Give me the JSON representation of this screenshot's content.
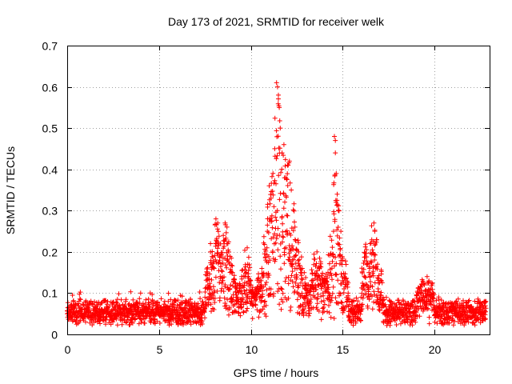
{
  "chart_data": {
    "type": "scatter",
    "title": "Day 173 of 2021, SRMTID for receiver welk",
    "xlabel": "GPS time / hours",
    "ylabel": "SRMTID / TECUs",
    "xlim": [
      0,
      23
    ],
    "ylim": [
      0,
      0.7
    ],
    "xticks": [
      0,
      5,
      10,
      15,
      20
    ],
    "yticks": [
      0,
      0.1,
      0.2,
      0.3,
      0.4,
      0.5,
      0.6,
      0.7
    ],
    "ytick_labels": [
      "0",
      "0.1",
      "0.2",
      "0.3",
      "0.4",
      "0.5",
      "0.6",
      "0.7"
    ],
    "xtick_labels": [
      "0",
      "5",
      "10",
      "15",
      "20"
    ],
    "grid": true,
    "marker": "+",
    "series": [
      {
        "name": "SRMTID",
        "color": "#ff0000",
        "x_range_hours": [
          0,
          22.8
        ],
        "baseline_level_tecu": 0.05,
        "points": [
          {
            "x": 0.0,
            "y": 0.05
          },
          {
            "x": 0.2,
            "y": 0.07
          },
          {
            "x": 0.5,
            "y": 0.04
          },
          {
            "x": 0.8,
            "y": 0.06
          },
          {
            "x": 1.0,
            "y": 0.03
          },
          {
            "x": 1.5,
            "y": 0.05
          },
          {
            "x": 2.0,
            "y": 0.04
          },
          {
            "x": 2.5,
            "y": 0.06
          },
          {
            "x": 3.0,
            "y": 0.05
          },
          {
            "x": 3.5,
            "y": 0.07
          },
          {
            "x": 4.0,
            "y": 0.1
          },
          {
            "x": 4.5,
            "y": 0.05
          },
          {
            "x": 5.0,
            "y": 0.06
          },
          {
            "x": 5.5,
            "y": 0.08
          },
          {
            "x": 6.0,
            "y": 0.07
          },
          {
            "x": 6.5,
            "y": 0.05
          },
          {
            "x": 7.0,
            "y": 0.06
          },
          {
            "x": 7.5,
            "y": 0.09
          },
          {
            "x": 7.8,
            "y": 0.2
          },
          {
            "x": 7.8,
            "y": 0.22
          },
          {
            "x": 8.0,
            "y": 0.16
          },
          {
            "x": 8.1,
            "y": 0.28
          },
          {
            "x": 8.2,
            "y": 0.27
          },
          {
            "x": 8.3,
            "y": 0.18
          },
          {
            "x": 8.5,
            "y": 0.24
          },
          {
            "x": 8.6,
            "y": 0.27
          },
          {
            "x": 8.7,
            "y": 0.26
          },
          {
            "x": 8.8,
            "y": 0.2
          },
          {
            "x": 9.0,
            "y": 0.15
          },
          {
            "x": 9.2,
            "y": 0.08
          },
          {
            "x": 9.5,
            "y": 0.14
          },
          {
            "x": 9.8,
            "y": 0.21
          },
          {
            "x": 10.0,
            "y": 0.12
          },
          {
            "x": 10.3,
            "y": 0.1
          },
          {
            "x": 10.6,
            "y": 0.16
          },
          {
            "x": 10.9,
            "y": 0.25
          },
          {
            "x": 11.0,
            "y": 0.36
          },
          {
            "x": 11.1,
            "y": 0.33
          },
          {
            "x": 11.3,
            "y": 0.45
          },
          {
            "x": 11.4,
            "y": 0.61
          },
          {
            "x": 11.45,
            "y": 0.6
          },
          {
            "x": 11.5,
            "y": 0.58
          },
          {
            "x": 11.55,
            "y": 0.55
          },
          {
            "x": 11.6,
            "y": 0.5
          },
          {
            "x": 11.7,
            "y": 0.44
          },
          {
            "x": 11.8,
            "y": 0.46
          },
          {
            "x": 11.9,
            "y": 0.38
          },
          {
            "x": 12.0,
            "y": 0.41
          },
          {
            "x": 12.1,
            "y": 0.42
          },
          {
            "x": 12.2,
            "y": 0.35
          },
          {
            "x": 12.4,
            "y": 0.26
          },
          {
            "x": 12.6,
            "y": 0.2
          },
          {
            "x": 12.8,
            "y": 0.16
          },
          {
            "x": 13.0,
            "y": 0.11
          },
          {
            "x": 13.3,
            "y": 0.13
          },
          {
            "x": 13.6,
            "y": 0.2
          },
          {
            "x": 13.9,
            "y": 0.12
          },
          {
            "x": 14.2,
            "y": 0.15
          },
          {
            "x": 14.5,
            "y": 0.25
          },
          {
            "x": 14.55,
            "y": 0.48
          },
          {
            "x": 14.6,
            "y": 0.47
          },
          {
            "x": 14.6,
            "y": 0.44
          },
          {
            "x": 14.65,
            "y": 0.39
          },
          {
            "x": 14.7,
            "y": 0.34
          },
          {
            "x": 14.8,
            "y": 0.3
          },
          {
            "x": 14.9,
            "y": 0.25
          },
          {
            "x": 15.0,
            "y": 0.18
          },
          {
            "x": 15.3,
            "y": 0.1
          },
          {
            "x": 15.6,
            "y": 0.08
          },
          {
            "x": 16.0,
            "y": 0.09
          },
          {
            "x": 16.5,
            "y": 0.22
          },
          {
            "x": 16.7,
            "y": 0.27
          },
          {
            "x": 16.75,
            "y": 0.25
          },
          {
            "x": 16.9,
            "y": 0.17
          },
          {
            "x": 17.2,
            "y": 0.09
          },
          {
            "x": 17.6,
            "y": 0.07
          },
          {
            "x": 18.0,
            "y": 0.06
          },
          {
            "x": 18.5,
            "y": 0.05
          },
          {
            "x": 19.0,
            "y": 0.06
          },
          {
            "x": 19.6,
            "y": 0.14
          },
          {
            "x": 19.7,
            "y": 0.13
          },
          {
            "x": 20.0,
            "y": 0.06
          },
          {
            "x": 20.5,
            "y": 0.05
          },
          {
            "x": 21.0,
            "y": 0.06
          },
          {
            "x": 21.5,
            "y": 0.05
          },
          {
            "x": 22.0,
            "y": 0.04
          },
          {
            "x": 22.5,
            "y": 0.05
          },
          {
            "x": 22.8,
            "y": 0.08
          }
        ]
      }
    ]
  }
}
